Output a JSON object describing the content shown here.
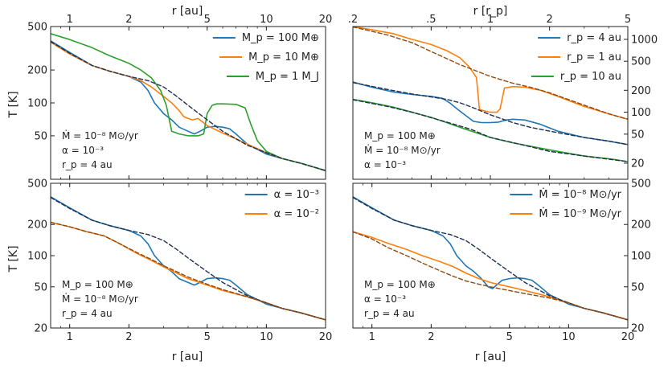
{
  "figure": {
    "top_xlabel_left": "r  [au]",
    "top_xlabel_right": "r  [r_p]",
    "bottom_xlabel": "r  [au]",
    "ylabel": "T  [K]"
  },
  "colors": {
    "blue": "#1f77b4",
    "orange": "#ff7f0e",
    "green": "#2ca02c",
    "dash_dark": "#1f3050",
    "dash_brown": "#8c4a12"
  },
  "chart_data": [
    {
      "type": "line",
      "panel": "top-left",
      "xscale": "log",
      "yscale": "log",
      "xlim": [
        0.8,
        20
      ],
      "ylim": [
        20,
        500
      ],
      "yticks": [
        {
          "v": 50,
          "label": "50"
        },
        {
          "v": 100,
          "label": "100"
        },
        {
          "v": 200,
          "label": "200"
        },
        {
          "v": 500,
          "label": "500"
        }
      ],
      "xticks_top": [
        {
          "v": 1,
          "label": "1"
        },
        {
          "v": 2,
          "label": "2"
        },
        {
          "v": 5,
          "label": "5"
        },
        {
          "v": 10,
          "label": "10"
        },
        {
          "v": 20,
          "label": "20"
        }
      ],
      "legend": "top-right",
      "annotations": [
        "Ṁ = 10⁻⁸ M⊙/yr",
        "α = 10⁻³",
        "r_p = 4 au"
      ],
      "series": [
        {
          "name": "M_p = 100 M⊕",
          "color": "blue",
          "x": [
            0.8,
            1.0,
            1.3,
            1.6,
            2.0,
            2.3,
            2.5,
            2.7,
            3.0,
            3.3,
            3.6,
            4.0,
            4.3,
            4.6,
            5.0,
            5.5,
            6.0,
            6.5,
            7.0,
            8.0,
            10,
            12,
            15,
            20
          ],
          "y": [
            370,
            290,
            220,
            195,
            175,
            155,
            130,
            100,
            80,
            70,
            60,
            55,
            52,
            55,
            60,
            61,
            60,
            58,
            52,
            42,
            34,
            31,
            28,
            24
          ]
        },
        {
          "name": "M_p = 10 M⊕",
          "color": "orange",
          "x": [
            0.8,
            1.0,
            1.3,
            1.6,
            2.0,
            2.3,
            2.6,
            3.0,
            3.3,
            3.6,
            3.8,
            4.0,
            4.2,
            4.5,
            5.0,
            6.0,
            7.0,
            8.0,
            10,
            12,
            15,
            20
          ],
          "y": [
            360,
            280,
            220,
            195,
            175,
            160,
            140,
            115,
            100,
            85,
            75,
            72,
            70,
            72,
            62,
            53,
            47,
            42,
            35,
            31,
            28,
            24
          ]
        },
        {
          "name": "M_p = 1 M_J",
          "color": "green",
          "x": [
            0.8,
            1.0,
            1.3,
            1.6,
            2.0,
            2.3,
            2.6,
            2.9,
            3.1,
            3.3,
            3.6,
            4.0,
            4.5,
            4.8,
            5.0,
            5.3,
            5.6,
            6.0,
            7.0,
            7.8,
            8.3,
            9.0,
            10,
            12,
            15,
            20
          ],
          "y": [
            430,
            380,
            320,
            270,
            230,
            200,
            170,
            130,
            95,
            55,
            52,
            50,
            50,
            52,
            80,
            95,
            98,
            98,
            97,
            90,
            65,
            45,
            36,
            31,
            28,
            24
          ]
        },
        {
          "name": "",
          "color": "dash_dark",
          "dashed": true,
          "x": [
            0.8,
            1.0,
            1.3,
            1.6,
            2.0,
            2.5,
            3.0,
            3.5,
            4.0,
            5.0,
            6.0,
            7.0,
            8.0,
            10,
            12,
            15,
            20
          ],
          "y": [
            365,
            285,
            220,
            195,
            175,
            160,
            140,
            115,
            95,
            70,
            55,
            47,
            41,
            35,
            31,
            28,
            24
          ]
        }
      ]
    },
    {
      "type": "line",
      "panel": "top-right",
      "xscale": "log",
      "yscale": "log",
      "xlim": [
        0.2,
        5
      ],
      "ylim": [
        12,
        1500
      ],
      "yticks": [
        {
          "v": 20,
          "label": "20"
        },
        {
          "v": 50,
          "label": "50"
        },
        {
          "v": 100,
          "label": "100"
        },
        {
          "v": 200,
          "label": "200"
        },
        {
          "v": 500,
          "label": "500"
        },
        {
          "v": 1000,
          "label": "1000"
        }
      ],
      "xticks_top": [
        {
          "v": 0.2,
          "label": ".2"
        },
        {
          "v": 0.5,
          "label": ".5"
        },
        {
          "v": 1,
          "label": "1"
        },
        {
          "v": 2,
          "label": "2"
        },
        {
          "v": 5,
          "label": "5"
        }
      ],
      "legend": "top-right",
      "annotations": [
        "M_p = 100 M⊕",
        "Ṁ = 10⁻⁸ M⊙/yr",
        "α = 10⁻³"
      ],
      "series": [
        {
          "name": "r_p = 4 au",
          "color": "blue",
          "x": [
            0.2,
            0.25,
            0.32,
            0.4,
            0.5,
            0.57,
            0.62,
            0.68,
            0.75,
            0.82,
            0.9,
            1.0,
            1.1,
            1.2,
            1.3,
            1.5,
            1.8,
            2.2,
            3.0,
            4.0,
            5.0
          ],
          "y": [
            260,
            220,
            190,
            175,
            165,
            155,
            135,
            110,
            90,
            75,
            72,
            72,
            73,
            78,
            80,
            78,
            68,
            55,
            45,
            40,
            36
          ]
        },
        {
          "name": "r_p = 1 au",
          "color": "orange",
          "x": [
            0.2,
            0.25,
            0.32,
            0.4,
            0.5,
            0.6,
            0.7,
            0.78,
            0.85,
            0.88,
            0.92,
            1.0,
            1.08,
            1.12,
            1.18,
            1.3,
            1.5,
            1.8,
            2.2,
            3.0,
            4.0,
            5.0
          ],
          "y": [
            1500,
            1350,
            1200,
            1000,
            850,
            700,
            560,
            420,
            300,
            110,
            105,
            100,
            100,
            110,
            215,
            225,
            220,
            200,
            165,
            120,
            95,
            80
          ]
        },
        {
          "name": "r_p = 10 au",
          "color": "green",
          "x": [
            0.2,
            0.25,
            0.32,
            0.4,
            0.5,
            0.6,
            0.7,
            0.85,
            1.0,
            1.3,
            1.7,
            2.2,
            3.0,
            4.0,
            5.0
          ],
          "y": [
            150,
            135,
            118,
            100,
            85,
            72,
            62,
            52,
            45,
            38,
            33,
            29,
            25,
            23,
            21
          ]
        },
        {
          "name": "",
          "color": "dash_brown",
          "dashed": true,
          "x": [
            0.2,
            0.3,
            0.4,
            0.5,
            0.7,
            1.0,
            1.3,
            1.6,
            2.0,
            3.0,
            4.0,
            5.0
          ],
          "y": [
            1480,
            1150,
            900,
            680,
            450,
            310,
            250,
            220,
            185,
            125,
            95,
            80
          ]
        },
        {
          "name": "",
          "color": "dash_dark",
          "dashed": true,
          "x": [
            0.2,
            0.3,
            0.4,
            0.5,
            0.6,
            0.7,
            0.8,
            1.0,
            1.3,
            1.6,
            2.0,
            3.0,
            4.0,
            5.0
          ],
          "y": [
            255,
            205,
            178,
            162,
            150,
            135,
            118,
            92,
            72,
            62,
            55,
            45,
            40,
            36
          ]
        },
        {
          "name": "",
          "color": "dash_dark",
          "dashed": true,
          "x": [
            0.2,
            0.3,
            0.4,
            0.6,
            0.8,
            1.0,
            1.5,
            2.0,
            3.0,
            5.0
          ],
          "y": [
            148,
            120,
            100,
            73,
            58,
            45,
            35,
            29,
            25,
            21
          ]
        }
      ]
    },
    {
      "type": "line",
      "panel": "bottom-left",
      "xscale": "log",
      "yscale": "log",
      "xlim": [
        0.8,
        20
      ],
      "ylim": [
        20,
        500
      ],
      "yticks": [
        {
          "v": 20,
          "label": "20"
        },
        {
          "v": 50,
          "label": "50"
        },
        {
          "v": 100,
          "label": "100"
        },
        {
          "v": 200,
          "label": "200"
        },
        {
          "v": 500,
          "label": "500"
        }
      ],
      "xticks": [
        {
          "v": 1,
          "label": "1"
        },
        {
          "v": 2,
          "label": "2"
        },
        {
          "v": 5,
          "label": "5"
        },
        {
          "v": 10,
          "label": "10"
        },
        {
          "v": 20,
          "label": "20"
        }
      ],
      "legend": "top-right",
      "annotations": [
        "M_p = 100 M⊕",
        "Ṁ = 10⁻⁸ M⊙/yr",
        "r_p = 4 au"
      ],
      "series": [
        {
          "name": "α = 10⁻³",
          "color": "blue",
          "x": [
            0.8,
            1.0,
            1.3,
            1.6,
            2.0,
            2.3,
            2.5,
            2.7,
            3.0,
            3.3,
            3.6,
            4.0,
            4.3,
            4.6,
            5.0,
            5.5,
            6.0,
            6.5,
            7.0,
            8.0,
            10,
            12,
            15,
            20
          ],
          "y": [
            370,
            290,
            220,
            195,
            175,
            155,
            130,
            100,
            80,
            70,
            60,
            55,
            52,
            55,
            60,
            61,
            60,
            58,
            52,
            42,
            34,
            31,
            28,
            24
          ]
        },
        {
          "name": "α = 10⁻²",
          "color": "orange",
          "x": [
            0.8,
            1.0,
            1.2,
            1.5,
            1.8,
            2.2,
            2.6,
            3.0,
            3.5,
            4.0,
            5.0,
            6.0,
            8.0,
            10,
            12,
            15,
            20
          ],
          "y": [
            210,
            190,
            172,
            155,
            130,
            105,
            90,
            78,
            68,
            60,
            52,
            46,
            40,
            35,
            31,
            28,
            24
          ]
        },
        {
          "name": "",
          "color": "dash_dark",
          "dashed": true,
          "x": [
            0.8,
            1.0,
            1.3,
            1.6,
            2.0,
            2.5,
            3.0,
            3.5,
            4.0,
            5.0,
            6.0,
            7.0,
            8.0,
            10,
            12,
            15,
            20
          ],
          "y": [
            365,
            285,
            220,
            195,
            175,
            160,
            140,
            115,
            95,
            70,
            55,
            47,
            41,
            35,
            31,
            28,
            24
          ]
        },
        {
          "name": "",
          "color": "dash_brown",
          "dashed": true,
          "x": [
            0.8,
            1.0,
            1.2,
            1.5,
            1.8,
            2.2,
            2.6,
            3.0,
            3.5,
            4.0,
            5.0,
            6.0,
            8.0,
            10,
            12,
            15,
            20
          ],
          "y": [
            210,
            190,
            172,
            155,
            130,
            107,
            92,
            80,
            70,
            62,
            53,
            47,
            40,
            35,
            31,
            28,
            24
          ]
        }
      ]
    },
    {
      "type": "line",
      "panel": "bottom-right",
      "xscale": "log",
      "yscale": "log",
      "xlim": [
        0.8,
        20
      ],
      "ylim": [
        20,
        500
      ],
      "yticks": [
        {
          "v": 20,
          "label": "20"
        },
        {
          "v": 50,
          "label": "50"
        },
        {
          "v": 100,
          "label": "100"
        },
        {
          "v": 200,
          "label": "200"
        },
        {
          "v": 500,
          "label": "500"
        }
      ],
      "xticks": [
        {
          "v": 1,
          "label": "1"
        },
        {
          "v": 2,
          "label": "2"
        },
        {
          "v": 5,
          "label": "5"
        },
        {
          "v": 10,
          "label": "10"
        },
        {
          "v": 20,
          "label": "20"
        }
      ],
      "legend": "top-right",
      "annotations": [
        "M_p = 100 M⊕",
        "α = 10⁻³",
        "r_p = 4 au"
      ],
      "series": [
        {
          "name": "Ṁ = 10⁻⁸ M⊙/yr",
          "color": "blue",
          "x": [
            0.8,
            1.0,
            1.3,
            1.6,
            2.0,
            2.3,
            2.5,
            2.7,
            3.0,
            3.3,
            3.6,
            3.9,
            4.1,
            4.3,
            4.6,
            5.0,
            5.5,
            6.0,
            6.5,
            7.0,
            8.0,
            10,
            12,
            15,
            20
          ],
          "y": [
            370,
            290,
            220,
            195,
            175,
            155,
            130,
            100,
            80,
            70,
            60,
            50,
            48,
            52,
            58,
            60,
            61,
            60,
            58,
            52,
            42,
            34,
            31,
            28,
            24
          ]
        },
        {
          "name": "Ṁ = 10⁻⁹ M⊙/yr",
          "color": "orange",
          "x": [
            0.8,
            1.0,
            1.2,
            1.5,
            1.8,
            2.2,
            2.6,
            3.0,
            3.5,
            4.0,
            5.0,
            6.0,
            8.0,
            10,
            12,
            15,
            20
          ],
          "y": [
            170,
            150,
            132,
            115,
            100,
            88,
            78,
            68,
            60,
            55,
            50,
            46,
            40,
            35,
            31,
            28,
            24
          ]
        },
        {
          "name": "",
          "color": "dash_dark",
          "dashed": true,
          "x": [
            0.8,
            1.0,
            1.3,
            1.6,
            2.0,
            2.5,
            3.0,
            3.5,
            4.0,
            5.0,
            6.0,
            7.0,
            8.0,
            10,
            12,
            15,
            20
          ],
          "y": [
            365,
            285,
            220,
            195,
            175,
            160,
            140,
            115,
            95,
            70,
            55,
            47,
            41,
            35,
            31,
            28,
            24
          ]
        },
        {
          "name": "",
          "color": "dash_brown",
          "dashed": true,
          "x": [
            0.8,
            1.0,
            1.2,
            1.5,
            1.8,
            2.2,
            2.6,
            3.0,
            3.5,
            4.0,
            5.0,
            6.0,
            8.0,
            10,
            12,
            15,
            20
          ],
          "y": [
            170,
            145,
            120,
            100,
            85,
            72,
            63,
            57,
            53,
            50,
            46,
            43,
            39,
            35,
            31,
            28,
            24
          ]
        }
      ]
    }
  ]
}
